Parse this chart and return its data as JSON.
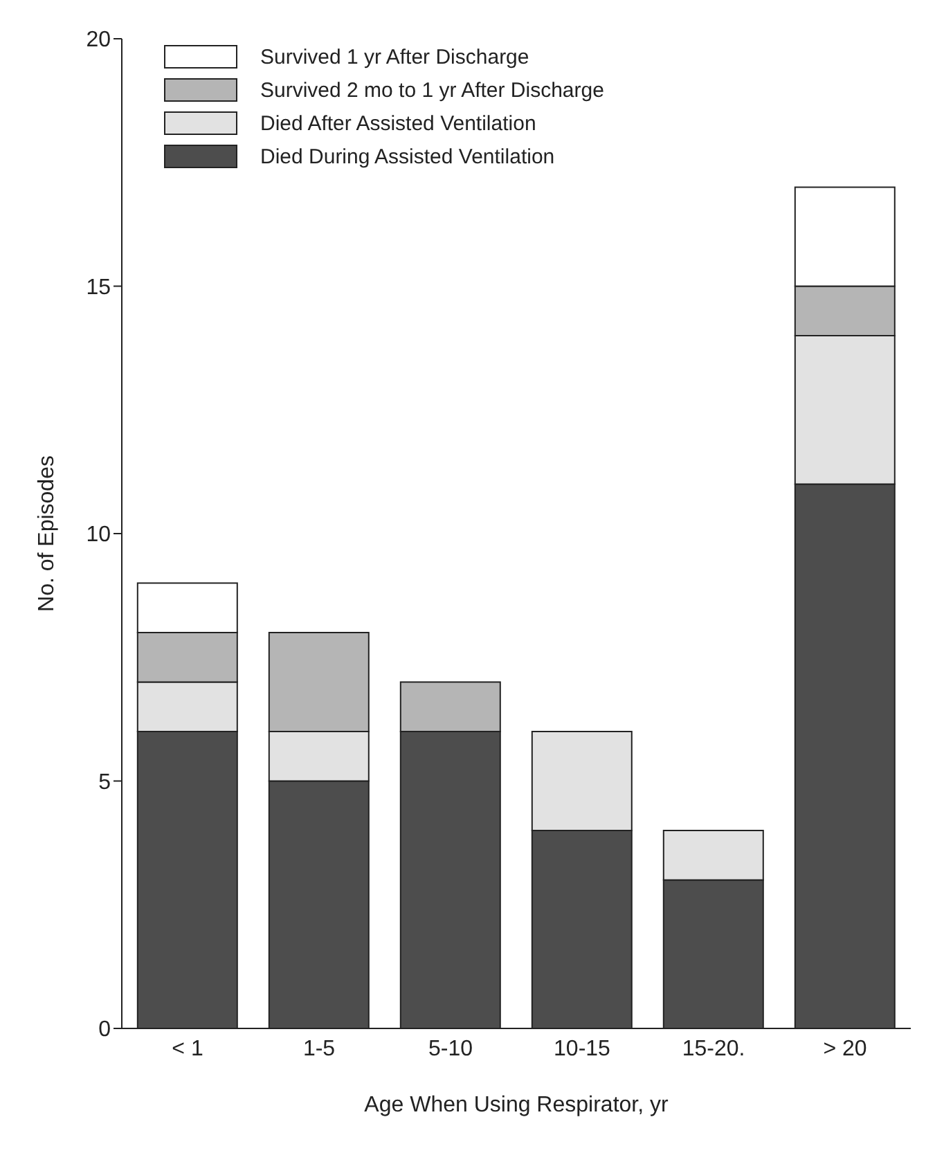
{
  "chart_data": {
    "type": "bar",
    "stacked": true,
    "xlabel": "Age When Using Respirator, yr",
    "ylabel": "No. of Episodes",
    "categories": [
      "< 1",
      "1-5",
      "5-10",
      "10-15",
      "15-20.",
      "> 20"
    ],
    "series": [
      {
        "name": "Died During Assisted Ventilation",
        "color": "#4d4d4d",
        "values": [
          6,
          5,
          6,
          4,
          3,
          11
        ]
      },
      {
        "name": "Died After Assisted Ventilation",
        "color": "#e2e2e2",
        "values": [
          1,
          1,
          0,
          2,
          1,
          3
        ]
      },
      {
        "name": "Survived 2 mo to 1 yr After Discharge",
        "color": "#b5b5b5",
        "values": [
          1,
          2,
          1,
          0,
          0,
          1
        ]
      },
      {
        "name": "Survived 1 yr After Discharge",
        "color": "#ffffff",
        "values": [
          1,
          0,
          0,
          0,
          0,
          2
        ]
      }
    ],
    "ylim": [
      0,
      20
    ],
    "yticks": [
      0,
      5,
      10,
      15,
      20
    ],
    "grid": false,
    "legend": "top left"
  }
}
